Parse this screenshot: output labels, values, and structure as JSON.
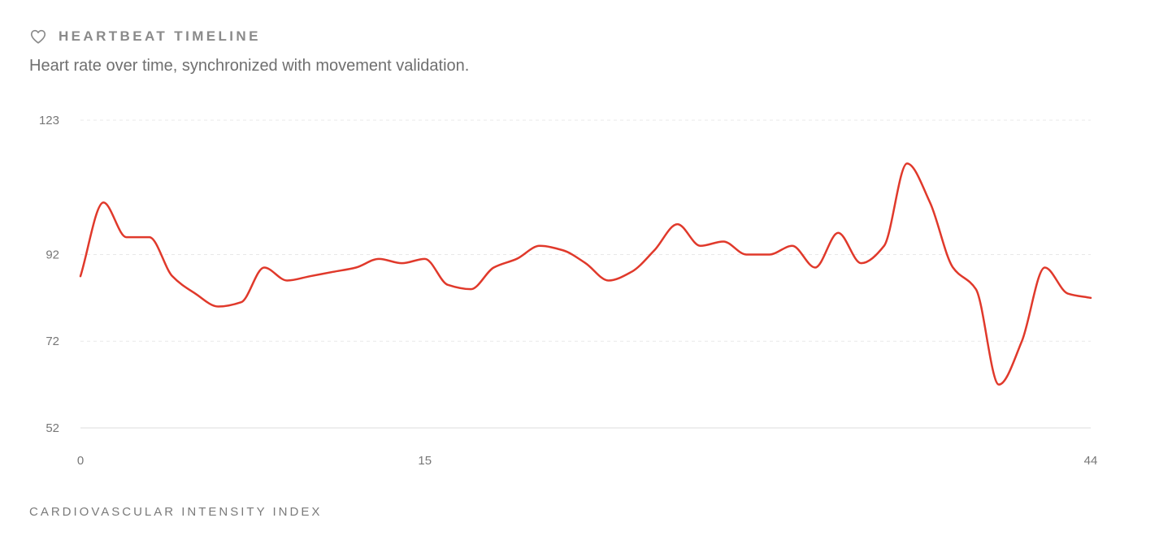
{
  "header": {
    "title": "HEARTBEAT TIMELINE",
    "subtitle": "Heart rate over time, synchronized with movement validation."
  },
  "footer": {
    "label": "CARDIOVASCULAR INTENSITY INDEX"
  },
  "colors": {
    "line": "#e0392b",
    "grid": "#e8e8e8",
    "axis": "#dddddd",
    "icon": "#8a8a8a"
  },
  "icons": {
    "header": "heart-icon"
  },
  "chart_data": {
    "type": "line",
    "xlim": [
      0,
      44
    ],
    "ylim": [
      52,
      123
    ],
    "x_ticks": [
      0,
      15,
      44
    ],
    "y_ticks": [
      52,
      72,
      92,
      123
    ],
    "grid": "horizontal-dashed",
    "series": [
      {
        "x": [
          0,
          1,
          2,
          3,
          4,
          5,
          6,
          7,
          8,
          9,
          10,
          11,
          12,
          13,
          14,
          15,
          16,
          17,
          18,
          19,
          20,
          21,
          22,
          23,
          24,
          25,
          26,
          27,
          28,
          29,
          30,
          31,
          32,
          33,
          34,
          35,
          36,
          37,
          38,
          39,
          40,
          41,
          42,
          43,
          44
        ],
        "values": [
          87,
          104,
          96,
          96,
          87,
          83,
          80,
          81,
          89,
          86,
          87,
          88,
          89,
          91,
          90,
          91,
          85,
          84,
          89,
          91,
          94,
          93,
          90,
          86,
          88,
          93,
          99,
          94,
          95,
          92,
          92,
          94,
          89,
          97,
          90,
          94,
          113,
          104,
          89,
          84,
          62,
          72,
          89,
          83,
          82
        ]
      }
    ]
  }
}
